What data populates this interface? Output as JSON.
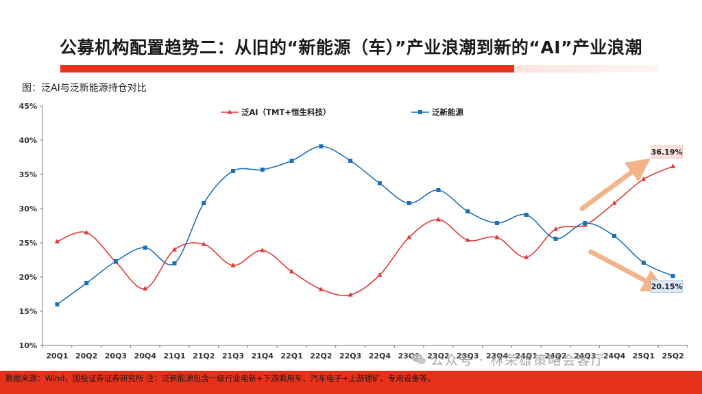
{
  "title": "公募机构配置趋势二：从旧的“新能源（车）”产业浪潮到新的“AI”产业浪潮",
  "figure_caption": "图：泛AI与泛新能源持仓对比",
  "footer": {
    "source": "数据来源：Wind，国投证券证券研究所   注：泛新能源包含一级行业电新+下游乘用车、汽车电子+上游锂矿、专用设备等。"
  },
  "watermark": {
    "text": "公众号 · 林荣雄策略会客厅",
    "icon": "wechat-icon"
  },
  "colors": {
    "accent_red": "#e8311a",
    "ai_series": "#e03a3a",
    "nev_series": "#1f6fb8",
    "arrow": "#f2b48a"
  },
  "chart_data": {
    "type": "line",
    "title": "",
    "xlabel": "",
    "ylabel": "",
    "ylim": [
      0.1,
      0.45
    ],
    "y_ticks": [
      "10%",
      "15%",
      "20%",
      "25%",
      "30%",
      "35%",
      "40%",
      "45%"
    ],
    "grid": false,
    "legend_position": "top",
    "categories": [
      "20Q1",
      "20Q2",
      "20Q3",
      "20Q4",
      "21Q1",
      "21Q2",
      "21Q3",
      "21Q4",
      "22Q1",
      "22Q2",
      "22Q3",
      "22Q4",
      "23Q1",
      "23Q2",
      "23Q3",
      "23Q4",
      "24Q1",
      "24Q2",
      "24Q3",
      "24Q4",
      "25Q1",
      "25Q2"
    ],
    "series": [
      {
        "name": "泛AI（TMT+恒生科技）",
        "color": "#e03a3a",
        "marker": "triangle",
        "values": [
          0.252,
          0.265,
          0.222,
          0.183,
          0.24,
          0.248,
          0.217,
          0.239,
          0.208,
          0.182,
          0.174,
          0.203,
          0.258,
          0.284,
          0.254,
          0.258,
          0.229,
          0.27,
          0.276,
          0.308,
          0.343,
          0.3619
        ]
      },
      {
        "name": "泛新能源",
        "color": "#1f6fb8",
        "marker": "square",
        "values": [
          0.16,
          0.191,
          0.223,
          0.243,
          0.22,
          0.308,
          0.355,
          0.357,
          0.37,
          0.391,
          0.37,
          0.337,
          0.308,
          0.327,
          0.296,
          0.279,
          0.291,
          0.256,
          0.279,
          0.26,
          0.221,
          0.2015
        ]
      }
    ],
    "annotations": [
      {
        "series": 0,
        "index": 21,
        "label": "36.19%"
      },
      {
        "series": 1,
        "index": 21,
        "label": "20.15%"
      }
    ],
    "arrows": [
      {
        "direction": "up",
        "from_index": 17.9,
        "to_index": 19.9,
        "from_value": 0.3,
        "to_value": 0.363
      },
      {
        "direction": "down",
        "from_index": 18.2,
        "to_index": 20.4,
        "from_value": 0.237,
        "to_value": 0.187
      }
    ]
  }
}
